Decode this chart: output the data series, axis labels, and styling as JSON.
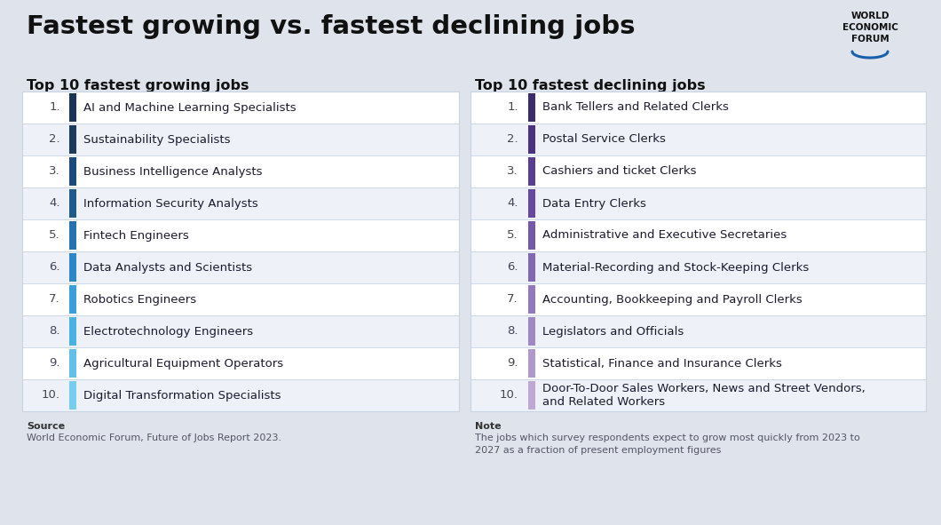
{
  "title": "Fastest growing vs. fastest declining jobs",
  "bg_color": "#dfe3ec",
  "growing_header": "Top 10 fastest growing jobs",
  "declining_header": "Top 10 fastest declining jobs",
  "growing_jobs": [
    "AI and Machine Learning Specialists",
    "Sustainability Specialists",
    "Business Intelligence Analysts",
    "Information Security Analysts",
    "Fintech Engineers",
    "Data Analysts and Scientists",
    "Robotics Engineers",
    "Electrotechnology Engineers",
    "Agricultural Equipment Operators",
    "Digital Transformation Specialists"
  ],
  "declining_jobs": [
    "Bank Tellers and Related Clerks",
    "Postal Service Clerks",
    "Cashiers and ticket Clerks",
    "Data Entry Clerks",
    "Administrative and Executive Secretaries",
    "Material-Recording and Stock-Keeping Clerks",
    "Accounting, Bookkeeping and Payroll Clerks",
    "Legislators and Officials",
    "Statistical, Finance and Insurance Clerks",
    "Door-To-Door Sales Workers, News and Street Vendors,\nand Related Workers"
  ],
  "growing_bar_colors": [
    "#1c3557",
    "#1c3a60",
    "#1d4a78",
    "#1e5a8a",
    "#2672b0",
    "#2e85c8",
    "#3a9fd8",
    "#4ab2e0",
    "#60c0e8",
    "#78ccee"
  ],
  "declining_bar_colors": [
    "#3d2b6e",
    "#4a3280",
    "#583d90",
    "#6648a0",
    "#7458aa",
    "#8268b4",
    "#9278bc",
    "#a088c4",
    "#b098cc",
    "#c0a8d4"
  ],
  "row_bg_odd": "#ffffff",
  "row_bg_even": "#eef2f8",
  "divider_color": "#c8d4e4",
  "text_color": "#1a1a2e",
  "num_color": "#444455",
  "source_label": "Source",
  "source_text": "World Economic Forum, Future of Jobs Report 2023.",
  "note_label": "Note",
  "note_text": "The jobs which survey respondents expect to grow most quickly from 2023 to\n2027 as a fraction of present employment figures"
}
